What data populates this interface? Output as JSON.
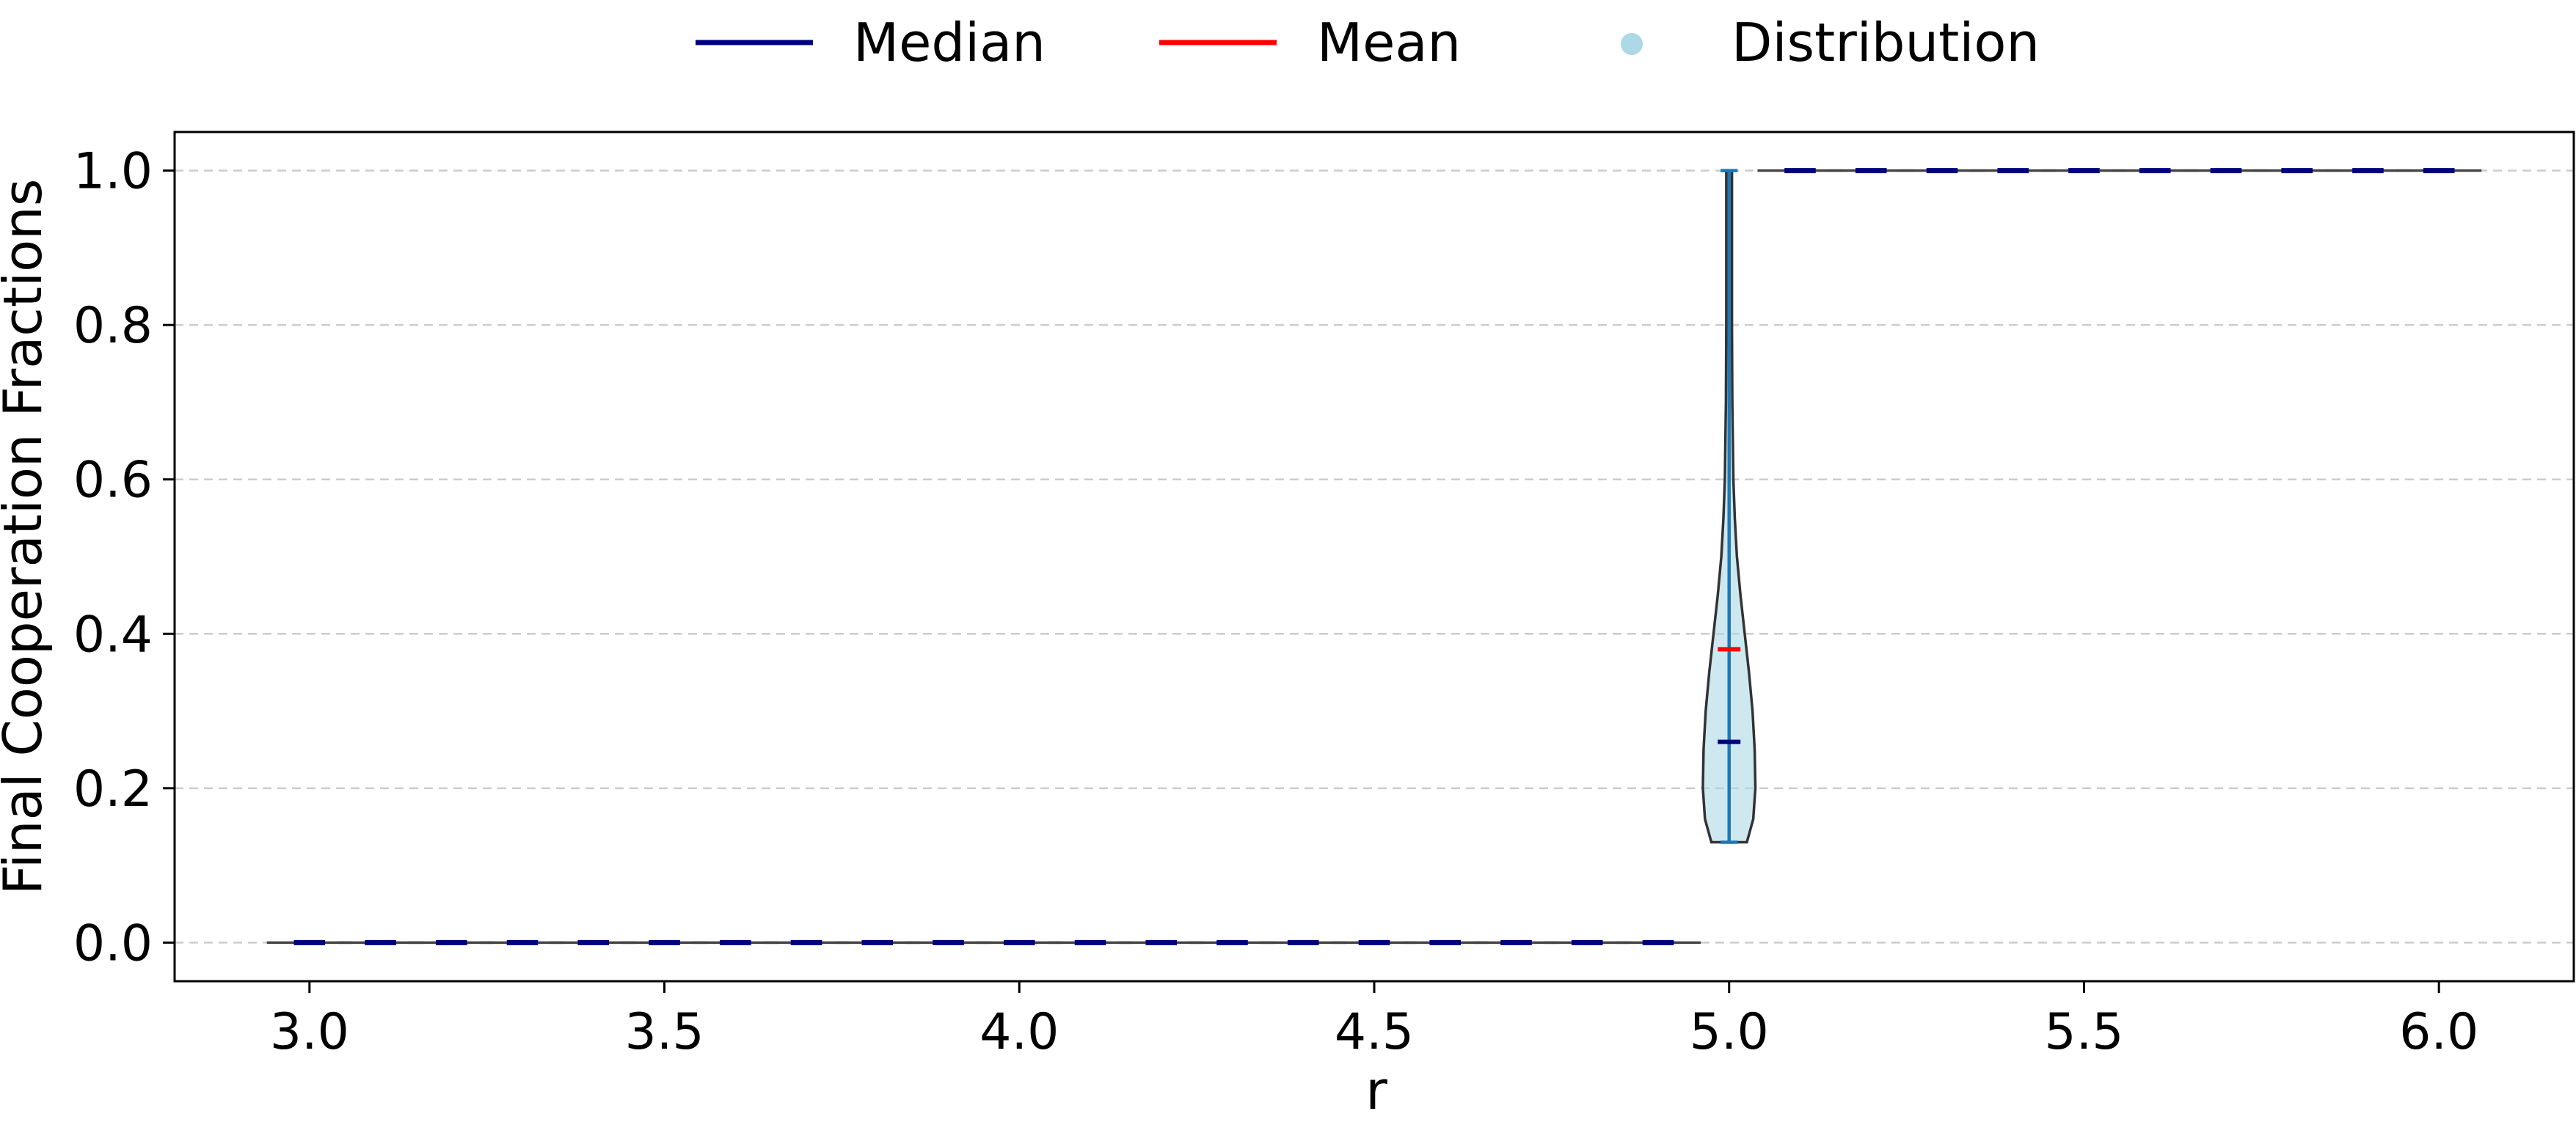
{
  "chart_data": {
    "type": "violin",
    "title": "",
    "xlabel": "r",
    "ylabel": "Final Cooperation Fractions",
    "xlim": [
      2.81,
      6.19
    ],
    "ylim": [
      -0.05,
      1.05
    ],
    "xticks": [
      3.0,
      3.5,
      4.0,
      4.5,
      5.0,
      5.5,
      6.0
    ],
    "xtick_labels": [
      "3.0",
      "3.5",
      "4.0",
      "4.5",
      "5.0",
      "5.5",
      "6.0"
    ],
    "yticks": [
      0.0,
      0.2,
      0.4,
      0.6,
      0.8,
      1.0
    ],
    "ytick_labels": [
      "0.0",
      "0.2",
      "0.4",
      "0.6",
      "0.8",
      "1.0"
    ],
    "grid": "horizontal dashed",
    "legend_position": "top-center, above plot",
    "legend": [
      {
        "label": "Median",
        "marker": "line",
        "color": "#00007f"
      },
      {
        "label": "Mean",
        "marker": "line",
        "color": "#ff0000"
      },
      {
        "label": "Distribution",
        "marker": "dot",
        "color": "#add8e6"
      }
    ],
    "colors": {
      "median": "#00007f",
      "mean": "#ff0000",
      "distribution_fill": "#add8e6",
      "distribution_edge": "#333333",
      "whisker": "#1f77b4",
      "grid": "#cccccc"
    },
    "r_values": [
      3.0,
      3.1,
      3.2,
      3.3,
      3.4,
      3.5,
      3.6,
      3.7,
      3.8,
      3.9,
      4.0,
      4.1,
      4.2,
      4.3,
      4.4,
      4.5,
      4.6,
      4.7,
      4.8,
      4.9,
      5.0,
      5.1,
      5.2,
      5.3,
      5.4,
      5.5,
      5.6,
      5.7,
      5.8,
      5.9,
      6.0
    ],
    "median": [
      0,
      0,
      0,
      0,
      0,
      0,
      0,
      0,
      0,
      0,
      0,
      0,
      0,
      0,
      0,
      0,
      0,
      0,
      0,
      0,
      0.26,
      1,
      1,
      1,
      1,
      1,
      1,
      1,
      1,
      1,
      1
    ],
    "mean": [
      0,
      0,
      0,
      0,
      0,
      0,
      0,
      0,
      0,
      0,
      0,
      0,
      0,
      0,
      0,
      0,
      0,
      0,
      0,
      0,
      0.38,
      1,
      1,
      1,
      1,
      1,
      1,
      1,
      1,
      1,
      1
    ],
    "min": [
      0,
      0,
      0,
      0,
      0,
      0,
      0,
      0,
      0,
      0,
      0,
      0,
      0,
      0,
      0,
      0,
      0,
      0,
      0,
      0,
      0.13,
      1,
      1,
      1,
      1,
      1,
      1,
      1,
      1,
      1,
      1
    ],
    "max": [
      0,
      0,
      0,
      0,
      0,
      0,
      0,
      0,
      0,
      0,
      0,
      0,
      0,
      0,
      0,
      0,
      0,
      0,
      0,
      0,
      1.0,
      1,
      1,
      1,
      1,
      1,
      1,
      1,
      1,
      1,
      1
    ],
    "density_r5": {
      "y": [
        0.13,
        0.16,
        0.2,
        0.25,
        0.3,
        0.35,
        0.4,
        0.45,
        0.5,
        0.55,
        0.6,
        0.7,
        0.8,
        0.9,
        1.0
      ],
      "half_width_r": [
        0.025,
        0.034,
        0.037,
        0.036,
        0.033,
        0.028,
        0.022,
        0.016,
        0.011,
        0.008,
        0.006,
        0.0045,
        0.004,
        0.004,
        0.004
      ]
    }
  }
}
